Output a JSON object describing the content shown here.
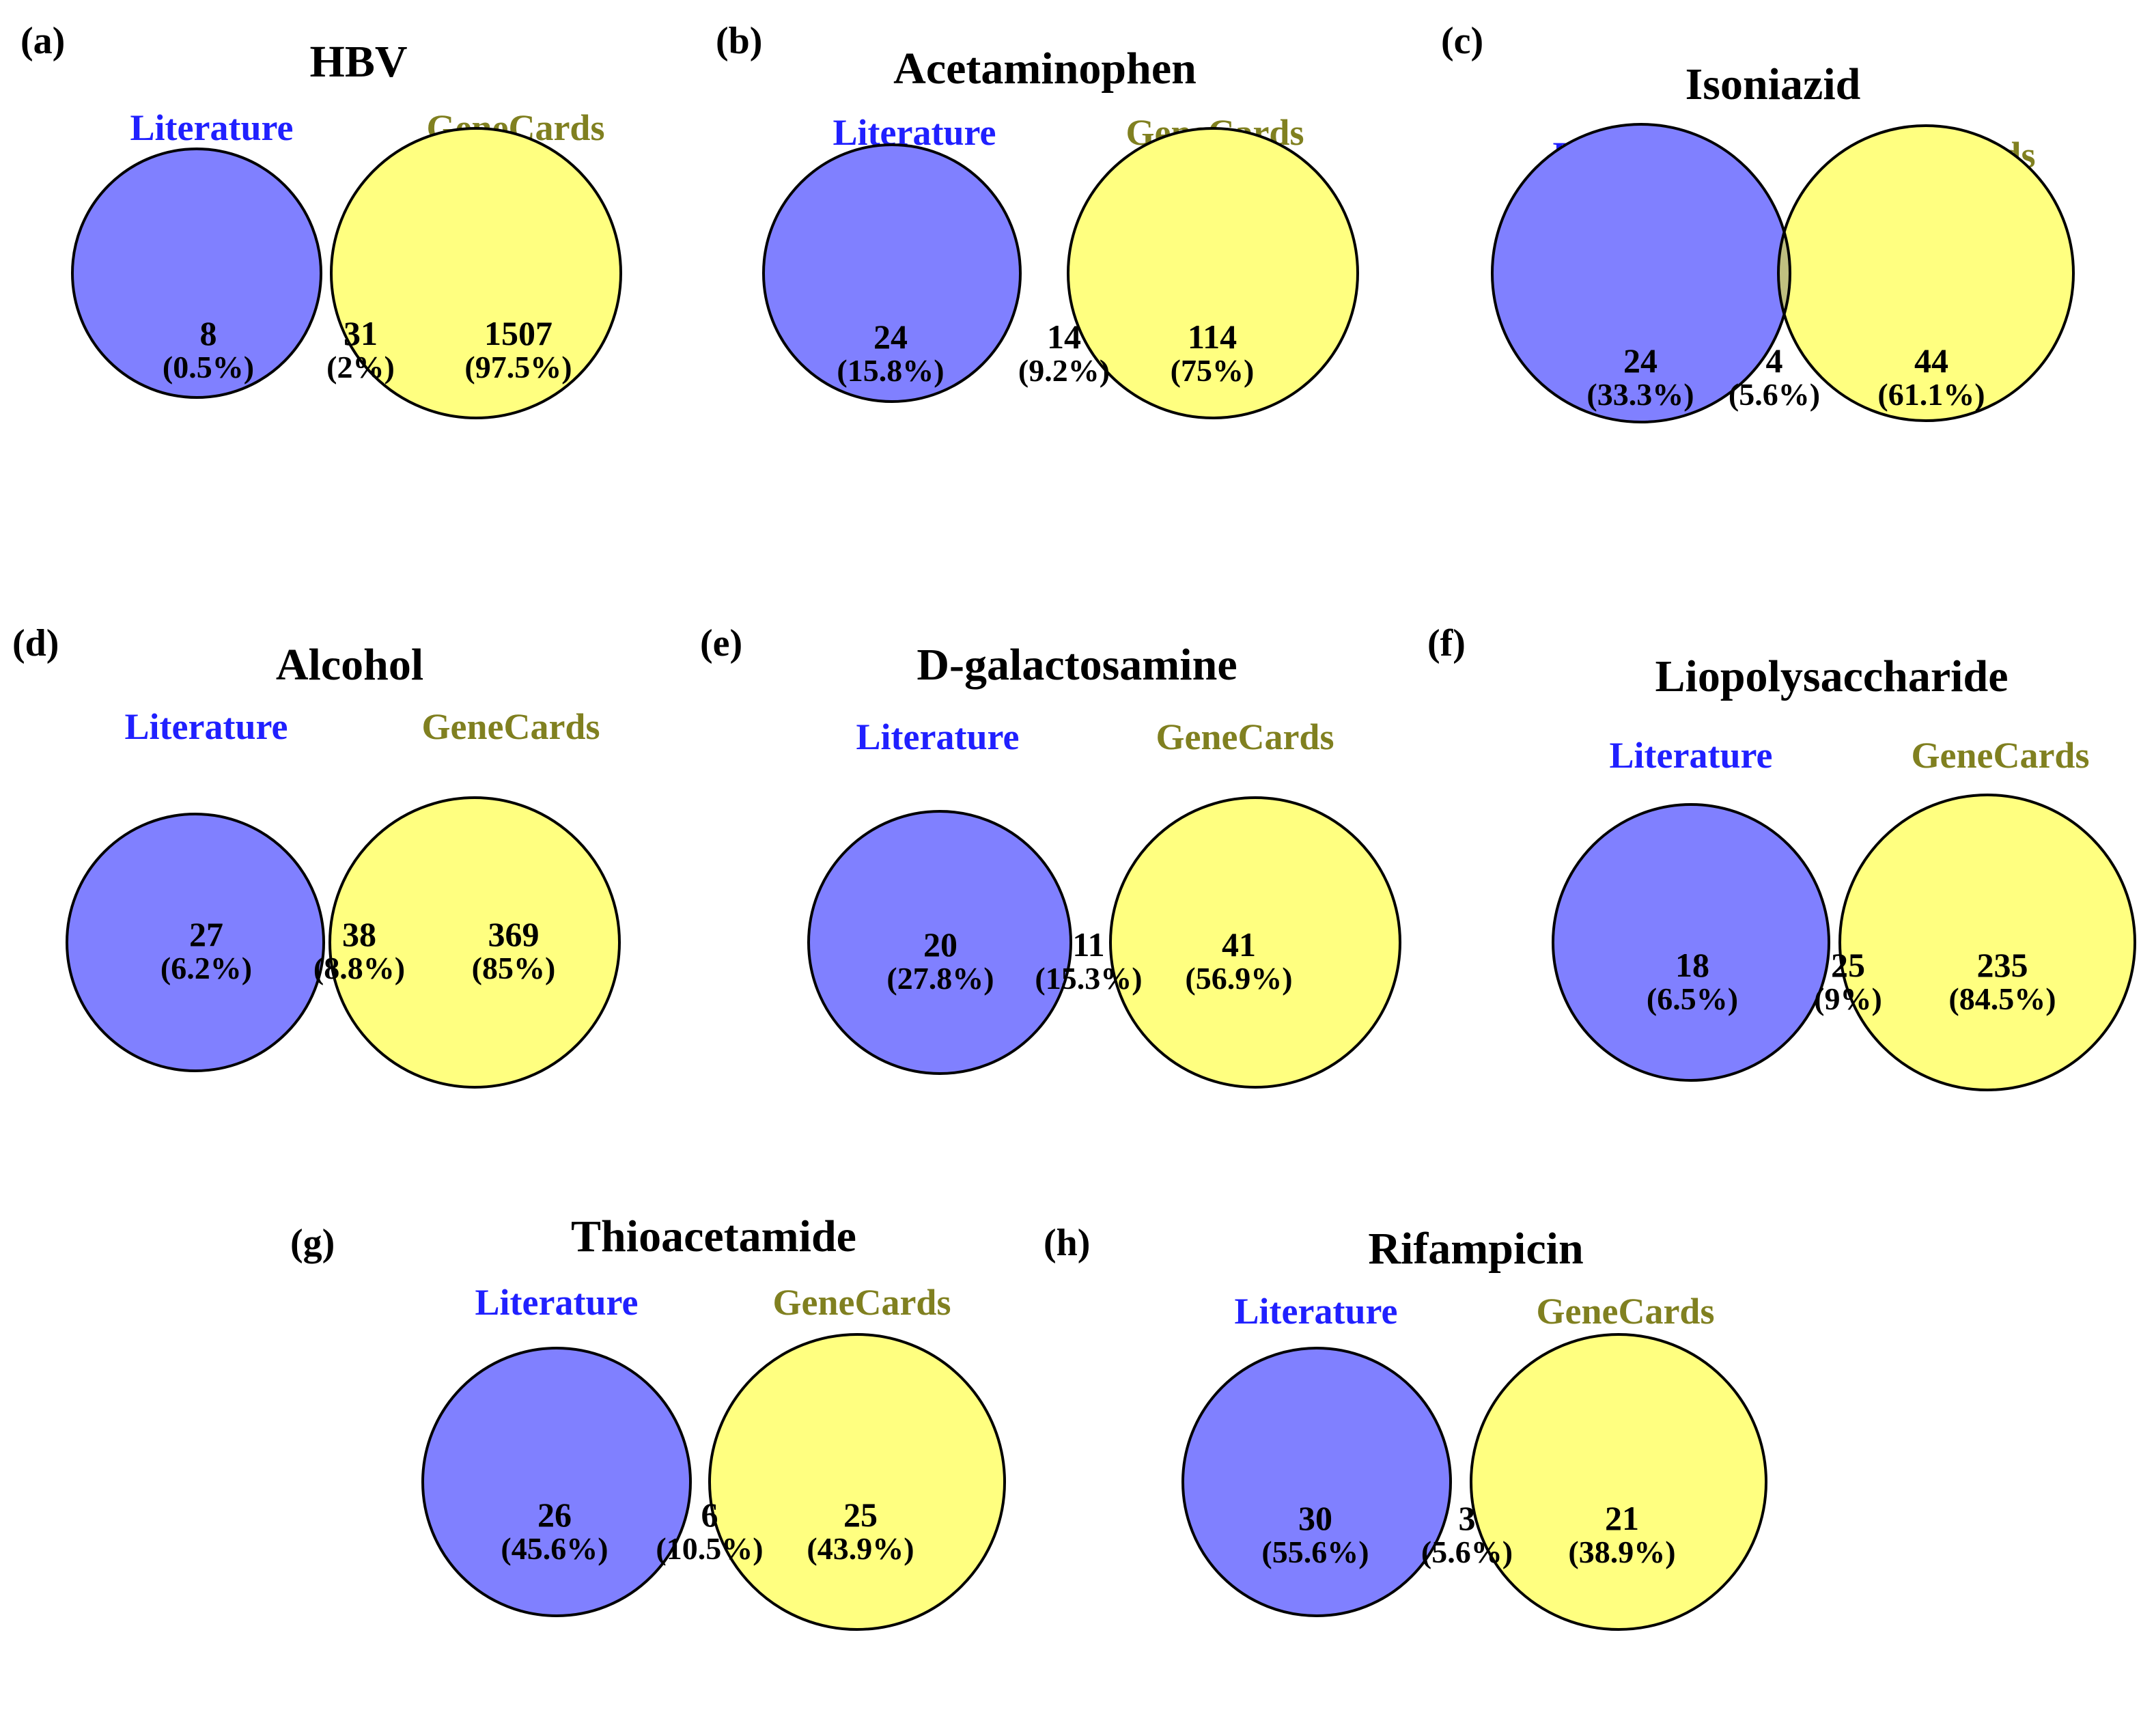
{
  "colors": {
    "literature_fill": "#8080ff",
    "genecards_fill": "#ffff80",
    "overlap_fill": "#bfbf80",
    "literature_text": "#2020ff",
    "genecards_text": "#808020",
    "outline": "#000000"
  },
  "panels": [
    {
      "panel_label": "(a)",
      "title": "HBV",
      "set_a": "Literature",
      "set_b": "GeneCards",
      "left_count": "8",
      "left_pct": "(0.5%)",
      "mid_count": "31",
      "mid_pct": "(2%)",
      "right_count": "1507",
      "right_pct": "(97.5%)"
    },
    {
      "panel_label": "(b)",
      "title": "Acetaminophen",
      "set_a": "Literature",
      "set_b": "GeneCards",
      "left_count": "24",
      "left_pct": "(15.8%)",
      "mid_count": "14",
      "mid_pct": "(9.2%)",
      "right_count": "114",
      "right_pct": "(75%)"
    },
    {
      "panel_label": "(c)",
      "title": "Isoniazid",
      "set_a": "Literature",
      "set_b": "GeneCards",
      "left_count": "24",
      "left_pct": "(33.3%)",
      "mid_count": "4",
      "mid_pct": "(5.6%)",
      "right_count": "44",
      "right_pct": "(61.1%)"
    },
    {
      "panel_label": "(d)",
      "title": "Alcohol",
      "set_a": "Literature",
      "set_b": "GeneCards",
      "left_count": "27",
      "left_pct": "(6.2%)",
      "mid_count": "38",
      "mid_pct": "(8.8%)",
      "right_count": "369",
      "right_pct": "(85%)"
    },
    {
      "panel_label": "(e)",
      "title": "D-galactosamine",
      "set_a": "Literature",
      "set_b": "GeneCards",
      "left_count": "20",
      "left_pct": "(27.8%)",
      "mid_count": "11",
      "mid_pct": "(15.3%)",
      "right_count": "41",
      "right_pct": "(56.9%)"
    },
    {
      "panel_label": "(f)",
      "title": "Liopolysaccharide",
      "set_a": "Literature",
      "set_b": "GeneCards",
      "left_count": "18",
      "left_pct": "(6.5%)",
      "mid_count": "25",
      "mid_pct": "(9%)",
      "right_count": "235",
      "right_pct": "(84.5%)"
    },
    {
      "panel_label": "(g)",
      "title": "Thioacetamide",
      "set_a": "Literature",
      "set_b": "GeneCards",
      "left_count": "26",
      "left_pct": "(45.6%)",
      "mid_count": "6",
      "mid_pct": "(10.5%)",
      "right_count": "25",
      "right_pct": "(43.9%)"
    },
    {
      "panel_label": "(h)",
      "title": "Rifampicin",
      "set_a": "Literature",
      "set_b": "GeneCards",
      "left_count": "30",
      "left_pct": "(55.6%)",
      "mid_count": "3",
      "mid_pct": "(5.6%)",
      "right_count": "21",
      "right_pct": "(38.9%)"
    }
  ]
}
